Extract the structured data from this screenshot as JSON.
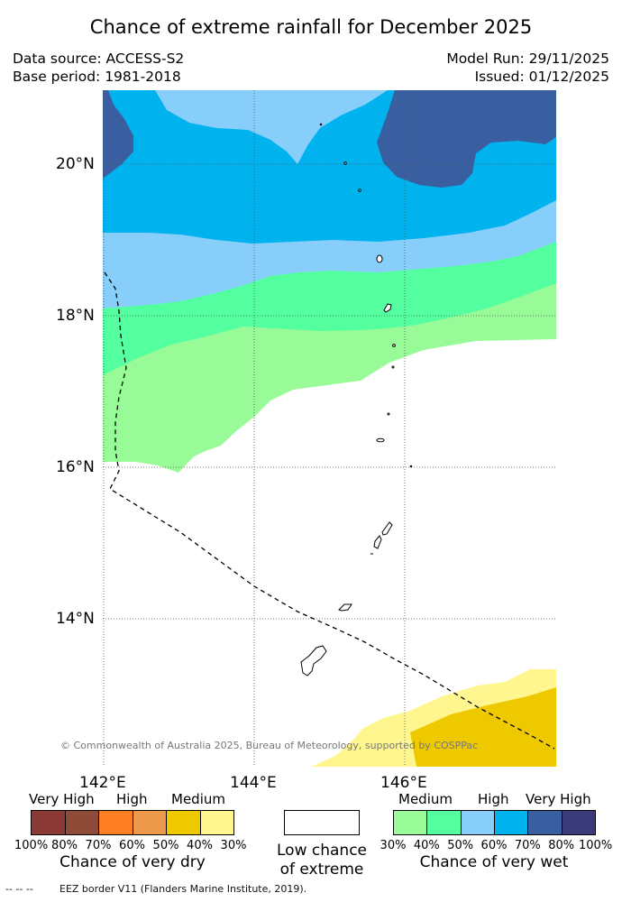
{
  "title": "Chance of extreme rainfall for December 2025",
  "header": {
    "data_source": "Data source: ACCESS-S2",
    "base_period": "Base period: 1981-2018",
    "model_run": "Model Run: 29/11/2025",
    "issued": "Issued: 01/12/2025"
  },
  "map": {
    "lat_labels": [
      "20°N",
      "18°N",
      "16°N",
      "14°N"
    ],
    "lon_labels": [
      "142°E",
      "144°E",
      "146°E"
    ],
    "copyright": "© Commonwealth of Australia 2025, Bureau of Meteorology, supported by COSPPac",
    "eez_line_color": "#000000"
  },
  "legend": {
    "dry": {
      "categories": [
        "Very High",
        "High",
        "Medium"
      ],
      "colors": [
        "#8b3a36",
        "#8e4b38",
        "#ff7f24",
        "#ee9a4d",
        "#eec900",
        "#fff68f"
      ],
      "percent_labels": [
        "100%",
        "80%",
        "70%",
        "60%",
        "50%",
        "40%",
        "30%"
      ],
      "caption": "Chance of very dry"
    },
    "low": {
      "caption_line1": "Low chance",
      "caption_line2": "of extreme",
      "color": "#ffffff"
    },
    "wet": {
      "categories": [
        "Medium",
        "High",
        "Very High"
      ],
      "colors": [
        "#98fb98",
        "#54ff9f",
        "#87cefa",
        "#00b2ee",
        "#3a5fa0",
        "#3b3b7a"
      ],
      "percent_labels": [
        "30%",
        "40%",
        "50%",
        "60%",
        "70%",
        "80%",
        "100%"
      ],
      "caption": "Chance of very wet"
    }
  },
  "footer": {
    "eez_symbol": "--  --  --",
    "eez_text": "EEZ border V11 (Flanders Marine Institute, 2019)."
  }
}
